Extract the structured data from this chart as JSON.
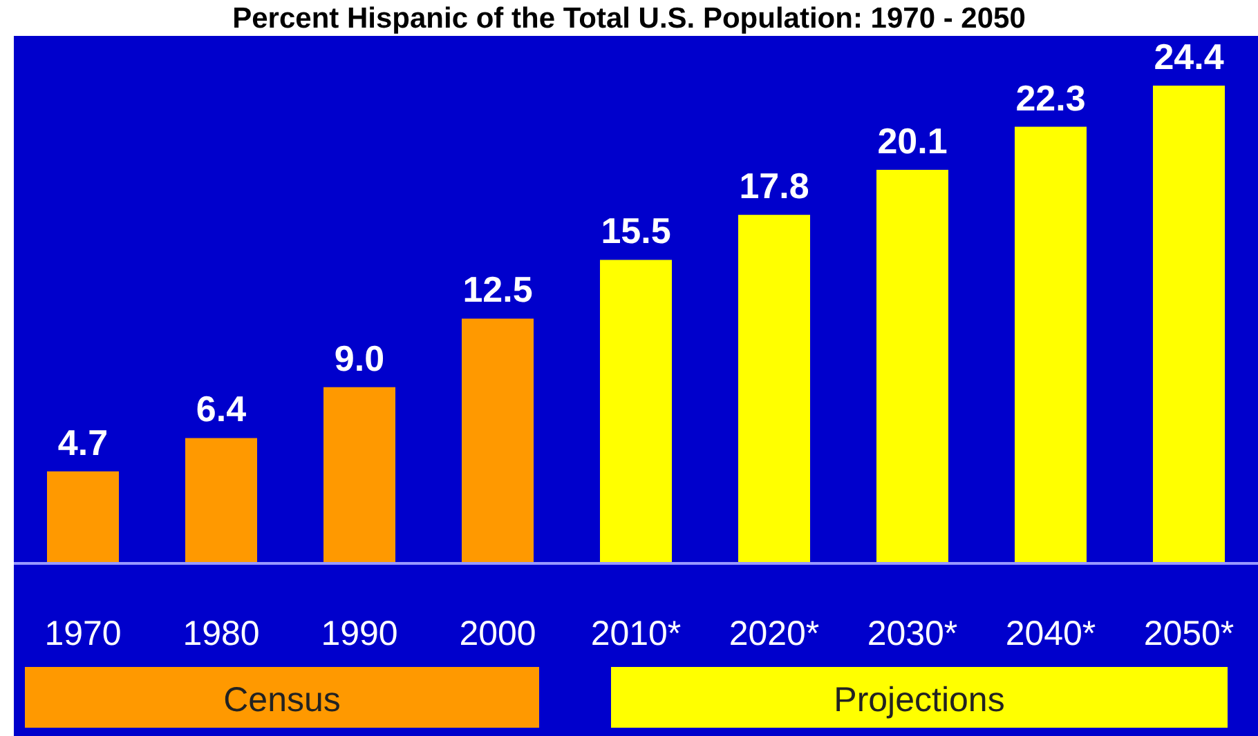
{
  "chart_data": {
    "type": "bar",
    "title": "Percent Hispanic of the Total U.S. Population: 1970 - 2050",
    "categories": [
      "1970",
      "1980",
      "1990",
      "2000",
      "2010*",
      "2020*",
      "2030*",
      "2040*",
      "2050*"
    ],
    "series": [
      {
        "name": "Census",
        "color": "#ff9900",
        "values": [
          4.7,
          6.4,
          9.0,
          12.5,
          null,
          null,
          null,
          null,
          null
        ],
        "value_labels": [
          "4.7",
          "6.4",
          "9.0",
          "12.5",
          null,
          null,
          null,
          null,
          null
        ]
      },
      {
        "name": "Projections",
        "color": "#ffff00",
        "values": [
          null,
          null,
          null,
          null,
          15.5,
          17.8,
          20.1,
          22.3,
          24.4
        ],
        "value_labels": [
          null,
          null,
          null,
          null,
          "15.5",
          "17.8",
          "20.1",
          "22.3",
          "24.4"
        ]
      }
    ],
    "stacked": true,
    "legend": "bottom"
  }
}
